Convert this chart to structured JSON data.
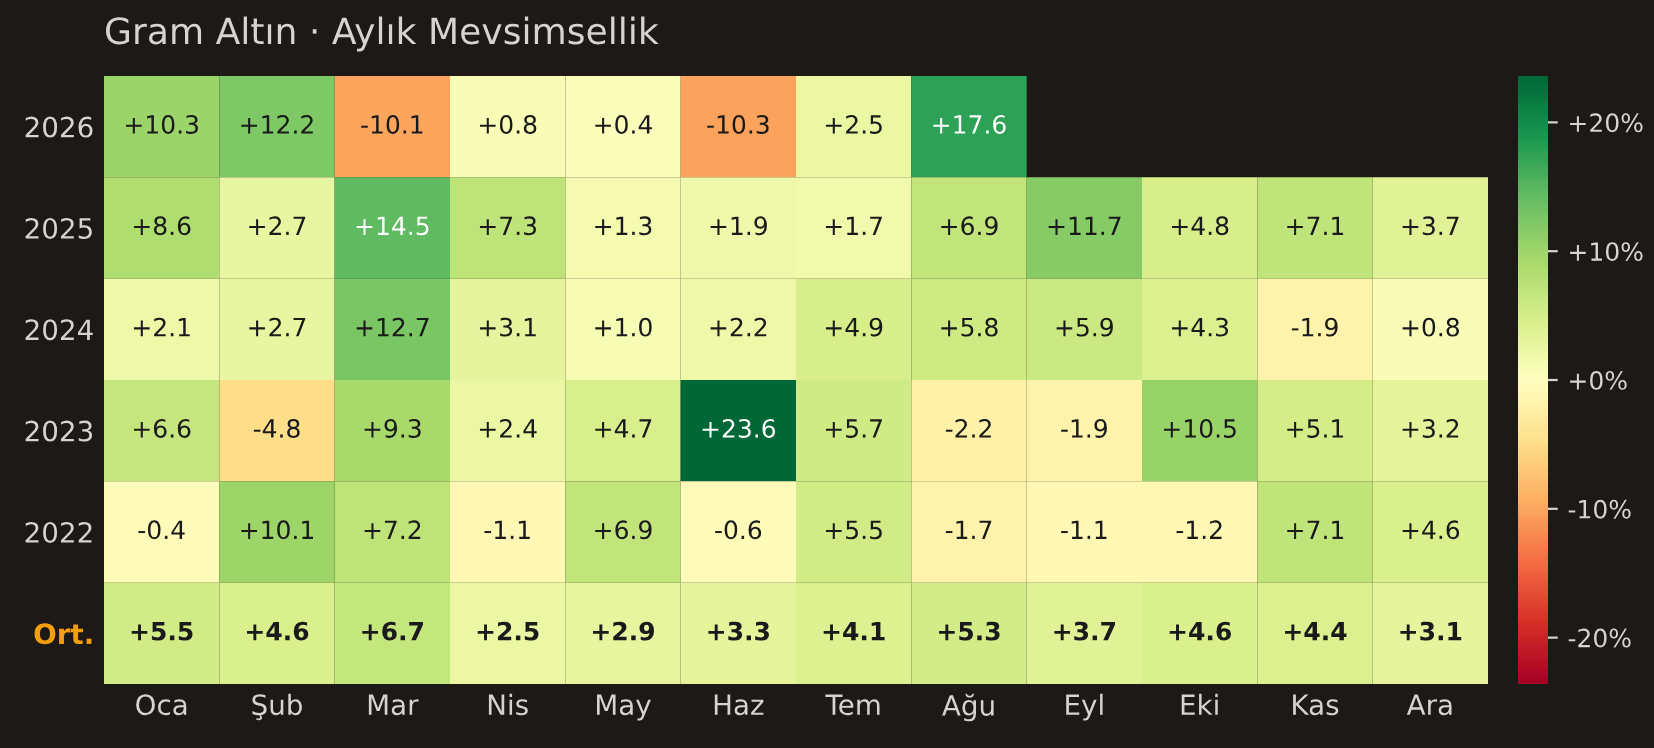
{
  "chart_data": {
    "type": "heatmap",
    "title": "Gram Altın · Aylık Mevsimsellik",
    "categories": [
      "Oca",
      "Şub",
      "Mar",
      "Nis",
      "May",
      "Haz",
      "Tem",
      "Ağu",
      "Eyl",
      "Eki",
      "Kas",
      "Ara"
    ],
    "y_categories": [
      "2026",
      "2025",
      "2024",
      "2023",
      "2022",
      "Ort."
    ],
    "cells": [
      [
        10.3,
        12.2,
        -10.1,
        0.8,
        0.4,
        -10.3,
        2.5,
        17.6,
        null,
        null,
        null,
        null
      ],
      [
        8.6,
        2.7,
        14.5,
        7.3,
        1.3,
        1.9,
        1.7,
        6.9,
        11.7,
        4.8,
        7.1,
        3.7
      ],
      [
        2.1,
        2.7,
        12.7,
        3.1,
        1.0,
        2.2,
        4.9,
        5.8,
        5.9,
        4.3,
        -1.9,
        0.8
      ],
      [
        6.6,
        -4.8,
        9.3,
        2.4,
        4.7,
        23.6,
        5.7,
        -2.2,
        -1.9,
        10.5,
        5.1,
        3.2
      ],
      [
        -0.4,
        10.1,
        7.2,
        -1.1,
        6.9,
        -0.6,
        5.5,
        -1.7,
        -1.1,
        -1.2,
        7.1,
        4.6
      ],
      [
        5.5,
        4.6,
        6.7,
        2.5,
        2.9,
        3.3,
        4.1,
        5.3,
        3.7,
        4.6,
        4.4,
        3.1
      ]
    ],
    "cell_labels": [
      [
        "+10.3",
        "+12.2",
        "-10.1",
        "+0.8",
        "+0.4",
        "-10.3",
        "+2.5",
        "+17.6",
        null,
        null,
        null,
        null
      ],
      [
        "+8.6",
        "+2.7",
        "+14.5",
        "+7.3",
        "+1.3",
        "+1.9",
        "+1.7",
        "+6.9",
        "+11.7",
        "+4.8",
        "+7.1",
        "+3.7"
      ],
      [
        "+2.1",
        "+2.7",
        "+12.7",
        "+3.1",
        "+1.0",
        "+2.2",
        "+4.9",
        "+5.8",
        "+5.9",
        "+4.3",
        "-1.9",
        "+0.8"
      ],
      [
        "+6.6",
        "-4.8",
        "+9.3",
        "+2.4",
        "+4.7",
        "+23.6",
        "+5.7",
        "-2.2",
        "-1.9",
        "+10.5",
        "+5.1",
        "+3.2"
      ],
      [
        "-0.4",
        "+10.1",
        "+7.2",
        "-1.1",
        "+6.9",
        "-0.6",
        "+5.5",
        "-1.7",
        "-1.1",
        "-1.2",
        "+7.1",
        "+4.6"
      ],
      [
        "+5.5",
        "+4.6",
        "+6.7",
        "+2.5",
        "+2.9",
        "+3.3",
        "+4.1",
        "+5.3",
        "+3.7",
        "+4.6",
        "+4.4",
        "+3.1"
      ]
    ],
    "clim": [
      -23.6,
      23.6
    ],
    "cticks": [
      {
        "value": -20,
        "label": "-20%"
      },
      {
        "value": -10,
        "label": "-10%"
      },
      {
        "value": 0,
        "label": "+0%"
      },
      {
        "value": 10,
        "label": "+10%"
      },
      {
        "value": 20,
        "label": "+20%"
      }
    ]
  }
}
